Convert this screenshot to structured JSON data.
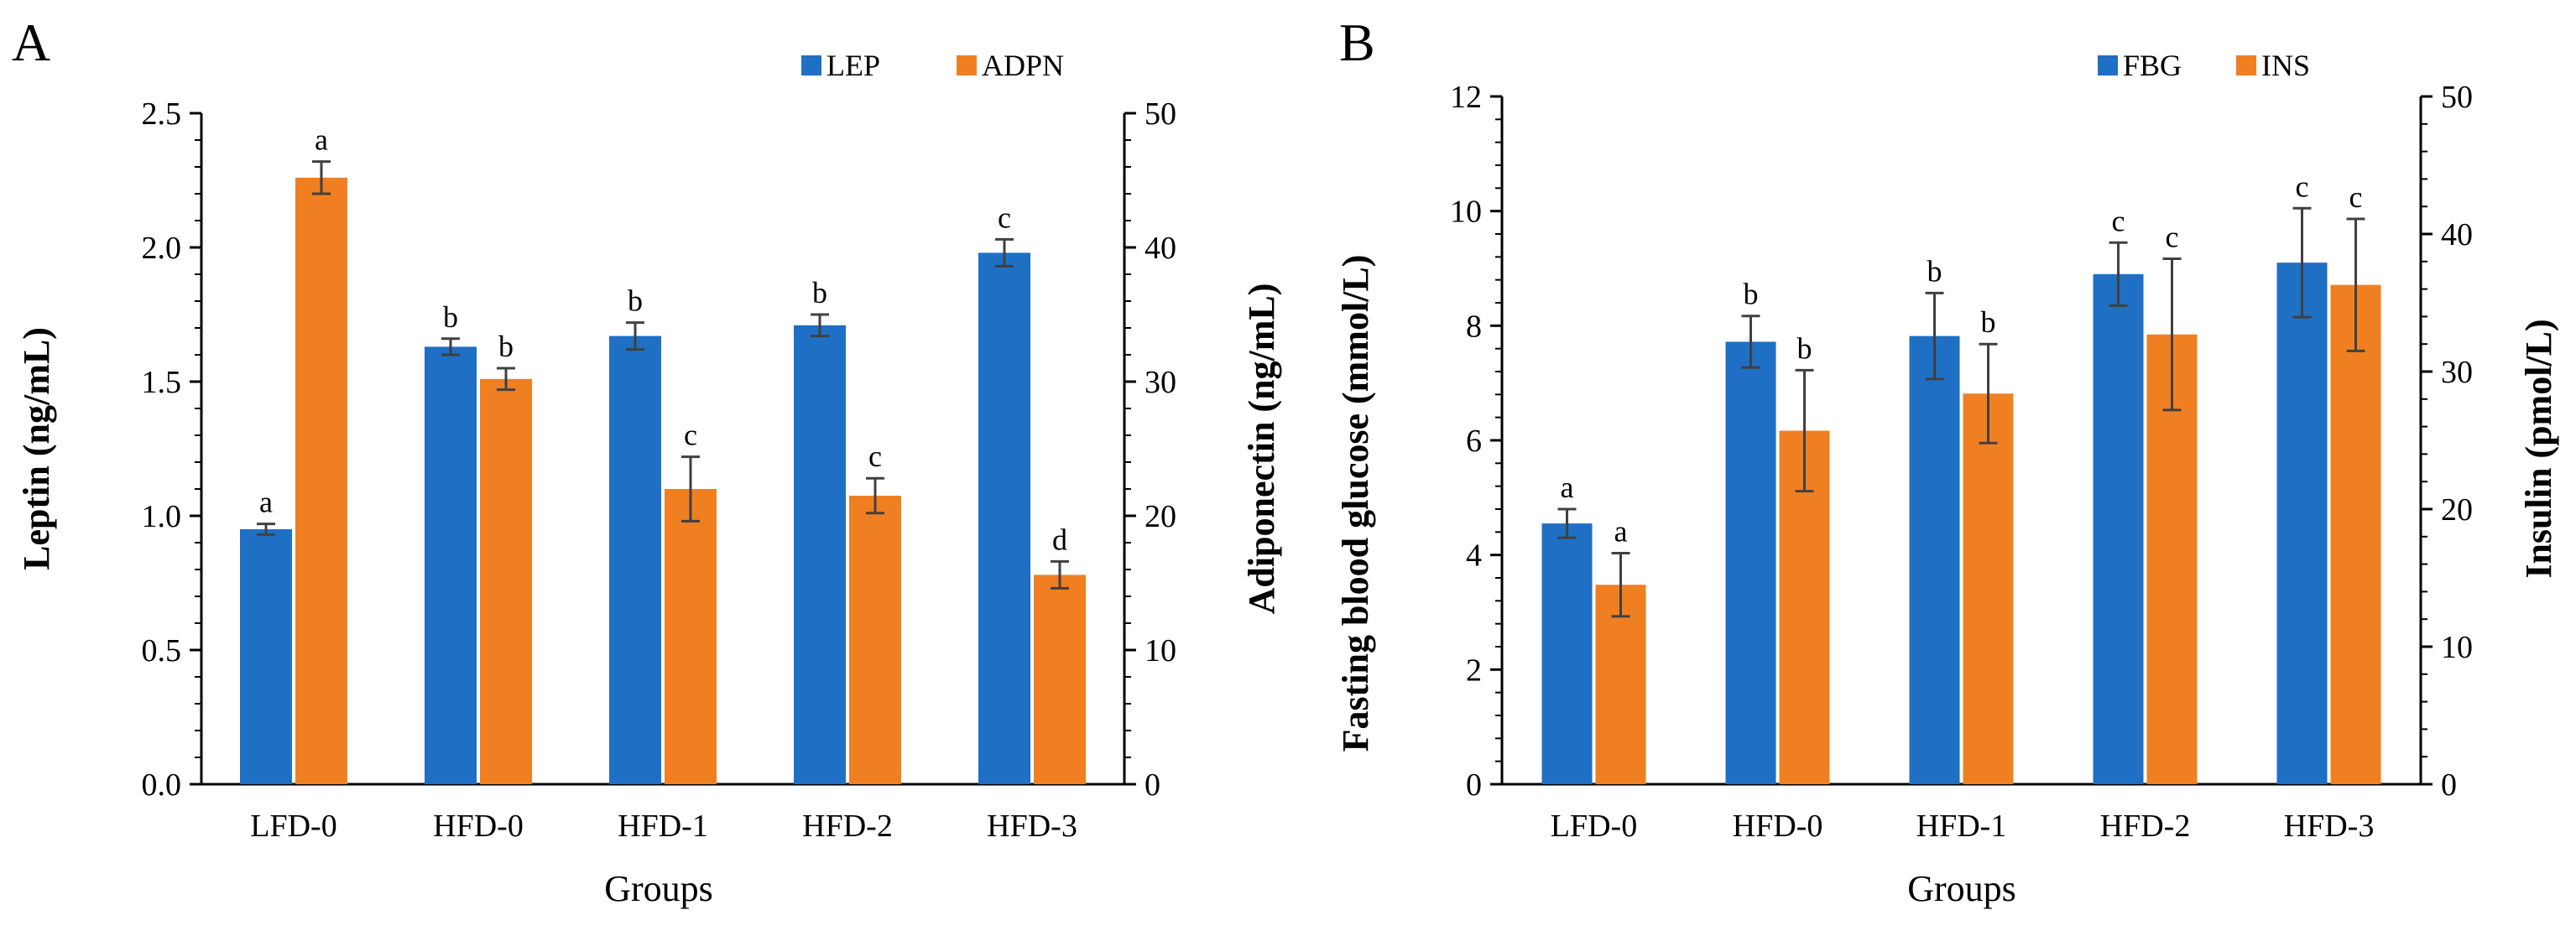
{
  "colors": {
    "blue": "#1F6FC5",
    "orange": "#F07F22",
    "axis": "#000000",
    "error": "#404040"
  },
  "chart_data": [
    {
      "panel_label": "A",
      "type": "bar",
      "categories": [
        "LFD-0",
        "HFD-0",
        "HFD-1",
        "HFD-2",
        "HFD-3"
      ],
      "xlabel": "Groups",
      "ylabel_left": "Leptin  (ng/mL)",
      "ylabel_right": "Adiponectin  (ng/mL)",
      "ylim_left": [
        0,
        2.5
      ],
      "yticks_left": [
        "0.0",
        "0.5",
        "1.0",
        "1.5",
        "2.0",
        "2.5"
      ],
      "ylim_right": [
        0,
        50
      ],
      "yticks_right": [
        "0",
        "10",
        "20",
        "30",
        "40",
        "50"
      ],
      "legend_position": "top-right",
      "series": [
        {
          "name": "LEP",
          "axis": "left",
          "color": "blue",
          "values": [
            0.95,
            1.63,
            1.67,
            1.71,
            1.98
          ],
          "errors": [
            0.02,
            0.03,
            0.05,
            0.04,
            0.05
          ],
          "letters": [
            "a",
            "b",
            "b",
            "b",
            "c"
          ]
        },
        {
          "name": "ADPN",
          "axis": "right",
          "color": "orange",
          "values": [
            45.2,
            30.2,
            22.0,
            21.5,
            15.6
          ],
          "errors": [
            1.2,
            0.8,
            2.4,
            1.3,
            1.0
          ],
          "letters": [
            "a",
            "b",
            "c",
            "c",
            "d"
          ]
        }
      ]
    },
    {
      "panel_label": "B",
      "type": "bar",
      "categories": [
        "LFD-0",
        "HFD-0",
        "HFD-1",
        "HFD-2",
        "HFD-3"
      ],
      "xlabel": "Groups",
      "ylabel_left": "Fasting blood glucose (mmol/L)",
      "ylabel_right": "Insulin  (pmol/L)",
      "ylim_left": [
        0,
        12
      ],
      "yticks_left": [
        "0",
        "2",
        "4",
        "6",
        "8",
        "10",
        "12"
      ],
      "ylim_right": [
        0,
        50
      ],
      "yticks_right": [
        "0",
        "10",
        "20",
        "30",
        "40",
        "50"
      ],
      "legend_position": "top-right",
      "series": [
        {
          "name": "FBG",
          "axis": "left",
          "color": "blue",
          "values": [
            4.55,
            7.72,
            7.82,
            8.9,
            9.1
          ],
          "errors": [
            0.25,
            0.45,
            0.75,
            0.55,
            0.95
          ],
          "letters": [
            "a",
            "b",
            "b",
            "c",
            "c"
          ]
        },
        {
          "name": "INS",
          "axis": "right",
          "color": "orange",
          "values": [
            14.5,
            25.7,
            28.4,
            32.7,
            36.3
          ],
          "errors": [
            2.3,
            4.4,
            3.6,
            5.5,
            4.8
          ],
          "letters": [
            "a",
            "b",
            "b",
            "c",
            "c"
          ]
        }
      ]
    }
  ]
}
